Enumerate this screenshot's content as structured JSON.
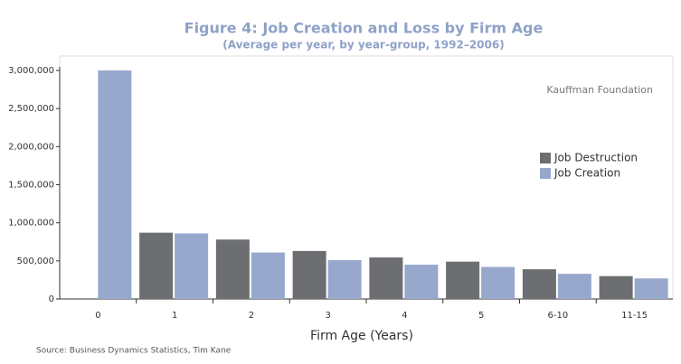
{
  "chart_data": {
    "type": "bar",
    "title": "Figure 4: Job Creation and Loss by Firm Age",
    "subtitle": "(Average per year, by year-group, 1992–2006)",
    "x_label": "Firm Age (Years)",
    "annotation": "Kauffman Foundation",
    "source": "Source: Business Dynamics Statistics, Tim Kane",
    "categories": [
      "0",
      "1",
      "2",
      "3",
      "4",
      "5",
      "6-10",
      "11-15"
    ],
    "series": [
      {
        "name": "Job Destruction",
        "color": "#6d6e71",
        "values": [
          0,
          870000,
          780000,
          630000,
          545000,
          490000,
          390000,
          300000
        ]
      },
      {
        "name": "Job Creation",
        "color": "#97a8cc",
        "values": [
          3000000,
          860000,
          610000,
          510000,
          450000,
          420000,
          330000,
          270000
        ]
      }
    ],
    "ylim": [
      0,
      3000000
    ],
    "yticks": [
      0,
      {
        "value": 500000,
        "label": "500,000"
      },
      {
        "value": 1000000,
        "label": "1,000,000"
      },
      {
        "value": 1500000,
        "label": "1,500,000"
      },
      {
        "value": 2000000,
        "label": "2,000,000"
      },
      {
        "value": 2500000,
        "label": "2,500,000"
      },
      {
        "value": 3000000,
        "label": "3,000,000"
      }
    ],
    "legend": "right"
  }
}
